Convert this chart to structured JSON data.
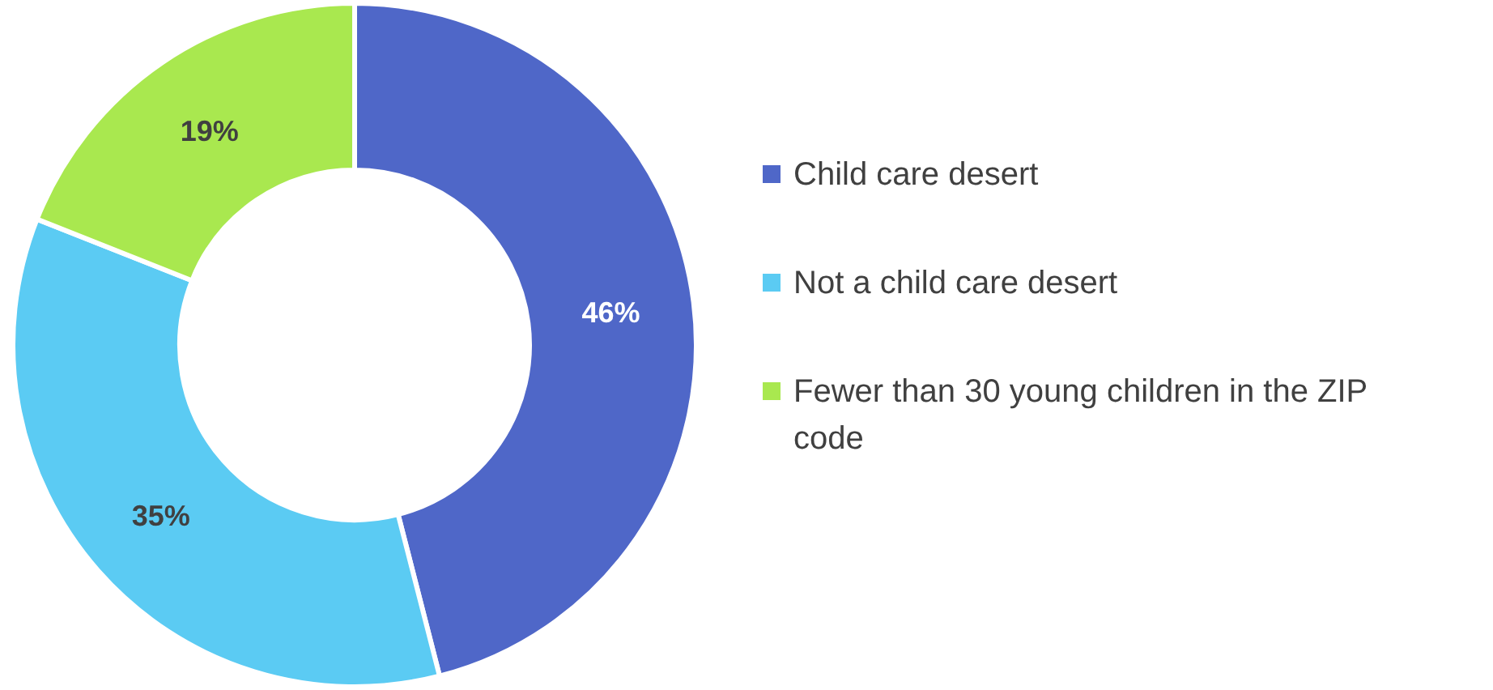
{
  "chart_data": {
    "type": "donut",
    "categories": [
      "Child care desert",
      "Not a child care desert",
      "Fewer than 30 young children in the ZIP code"
    ],
    "values": [
      46,
      35,
      19
    ],
    "colors": [
      "#4f67c8",
      "#5bcbf3",
      "#a9e84f"
    ],
    "value_labels": [
      "46%",
      "35%",
      "19%"
    ],
    "legend": "right"
  }
}
